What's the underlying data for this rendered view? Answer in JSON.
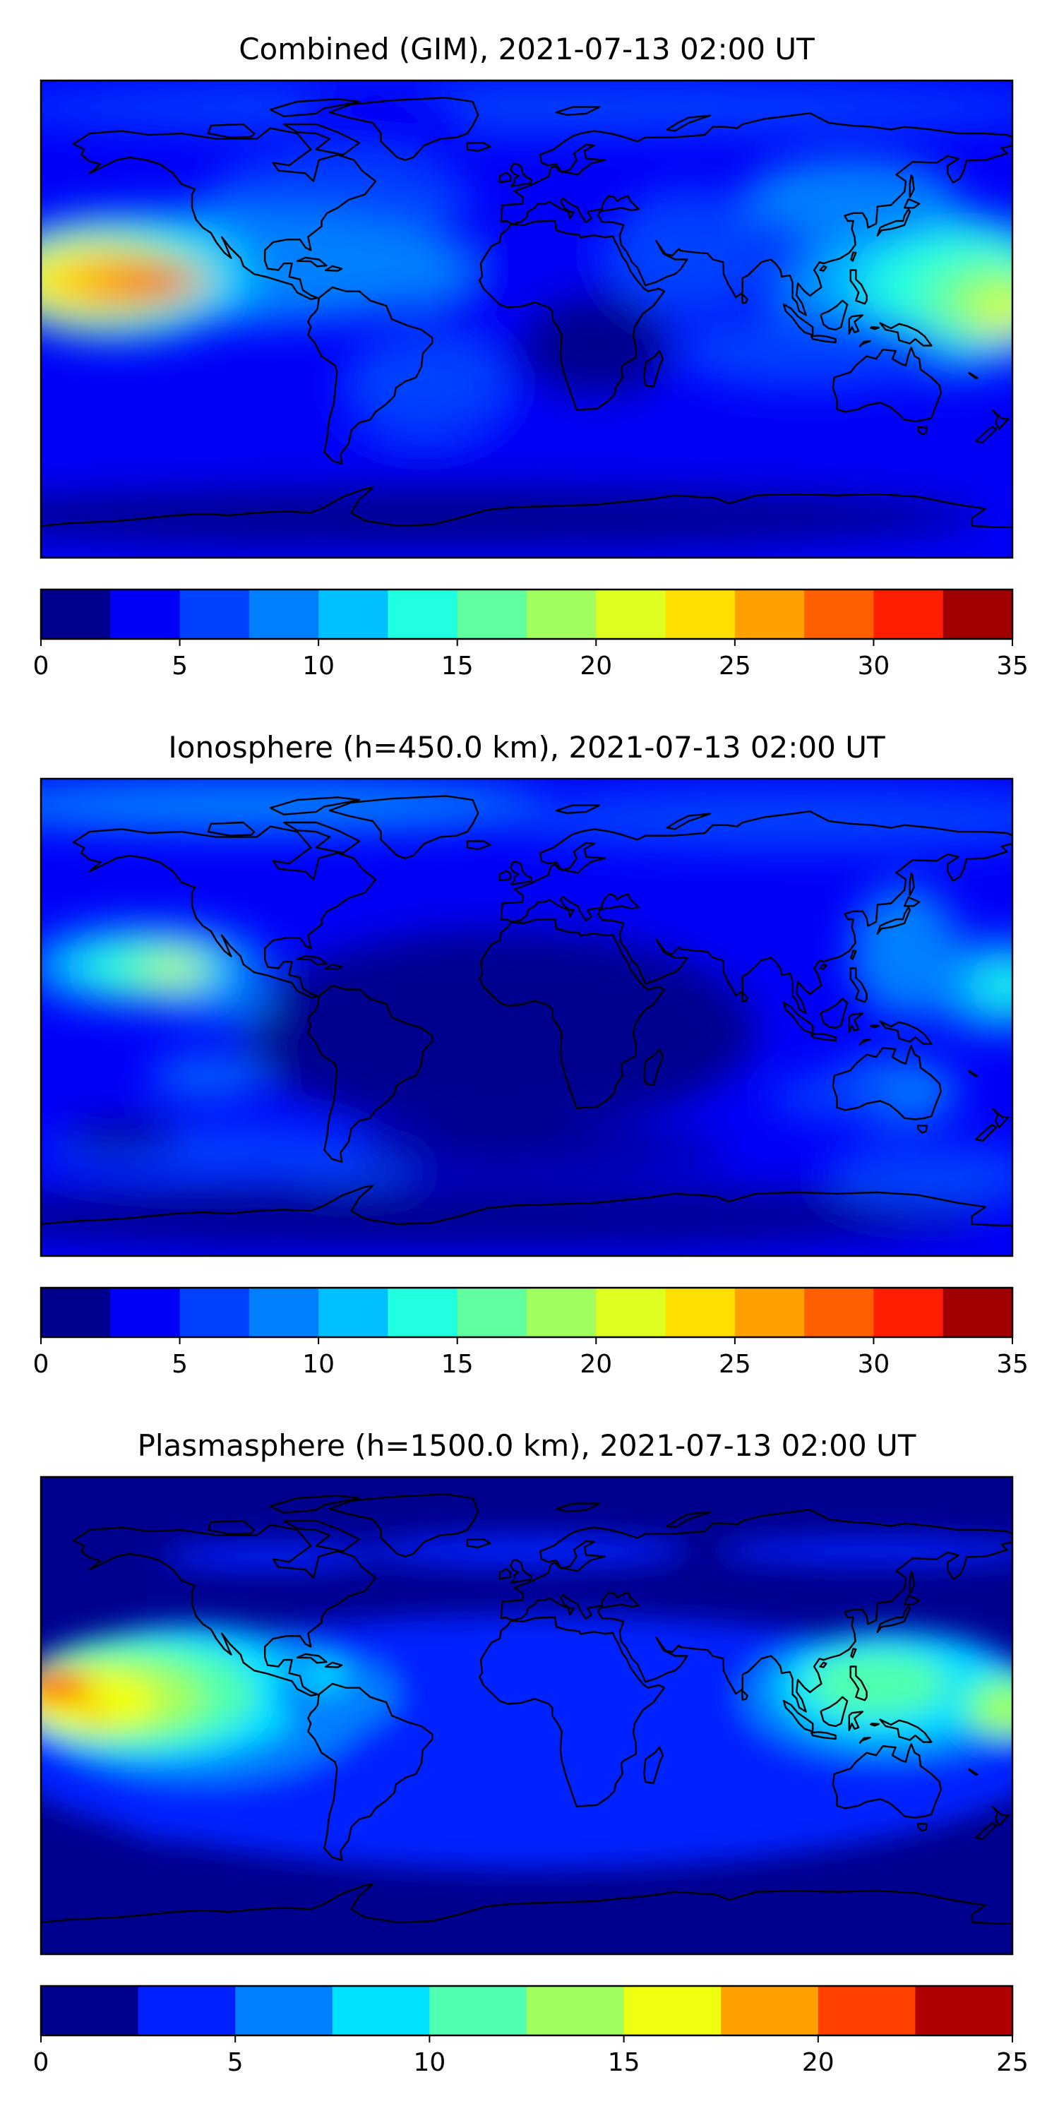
{
  "colors": {
    "scale_35": [
      "#00008f",
      "#0000f8",
      "#0040ff",
      "#0080ff",
      "#00c0ff",
      "#20ffdf",
      "#60ff9f",
      "#a0ff5f",
      "#dfff20",
      "#ffdf00",
      "#ff9f00",
      "#ff5f00",
      "#ff1f00",
      "#a00000"
    ],
    "scale_25": [
      "#00008f",
      "#0020ff",
      "#0080ff",
      "#00e0ff",
      "#50ffaf",
      "#a0ff5f",
      "#f0ff0f",
      "#ffa000",
      "#ff4000",
      "#b00000"
    ],
    "coastline": "#000000"
  },
  "chart_data": [
    {
      "type": "heatmap",
      "subtype": "filled-contour-map",
      "title": "Combined (GIM), 2021-07-13 02:00 UT",
      "projection": "PlateCarree",
      "coastlines": true,
      "colorbar": {
        "orientation": "horizontal",
        "levels": [
          0,
          2.5,
          5,
          7.5,
          10,
          12.5,
          15,
          17.5,
          20,
          22.5,
          25,
          27.5,
          30,
          32.5,
          35
        ],
        "ticks": [
          "0",
          "5",
          "10",
          "15",
          "20",
          "25",
          "30",
          "35"
        ],
        "range": [
          0,
          35
        ]
      }
    },
    {
      "type": "heatmap",
      "subtype": "filled-contour-map",
      "title": "Ionosphere  (h=450.0 km), 2021-07-13 02:00 UT",
      "projection": "PlateCarree",
      "coastlines": true,
      "colorbar": {
        "orientation": "horizontal",
        "levels": [
          0,
          2.5,
          5,
          7.5,
          10,
          12.5,
          15,
          17.5,
          20,
          22.5,
          25,
          27.5,
          30,
          32.5,
          35
        ],
        "ticks": [
          "0",
          "5",
          "10",
          "15",
          "20",
          "25",
          "30",
          "35"
        ],
        "range": [
          0,
          35
        ]
      }
    },
    {
      "type": "heatmap",
      "subtype": "filled-contour-map",
      "title": "Plasmasphere (h=1500.0 km), 2021-07-13 02:00 UT",
      "projection": "PlateCarree",
      "coastlines": true,
      "colorbar": {
        "orientation": "horizontal",
        "levels": [
          0,
          2.5,
          5,
          7.5,
          10,
          12.5,
          15,
          17.5,
          20,
          22.5,
          25
        ],
        "ticks": [
          "0",
          "5",
          "10",
          "15",
          "20",
          "25"
        ],
        "range": [
          0,
          25
        ]
      }
    }
  ]
}
